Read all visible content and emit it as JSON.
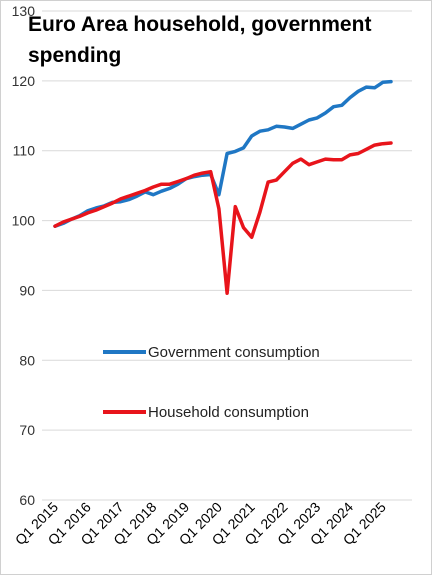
{
  "chart_data": {
    "type": "line",
    "title_lines": [
      "Euro Area household, government",
      "spending"
    ],
    "xlabel": "",
    "ylabel": "",
    "ylim": [
      60,
      130
    ],
    "y_ticks": [
      60,
      70,
      80,
      90,
      100,
      110,
      120,
      130
    ],
    "grid": "horizontal",
    "legend_placement": "center",
    "x_start": "2015-Q1",
    "x_ticks": [
      "Q1 2015",
      "Q1 2016",
      "Q1 2017",
      "Q1 2018",
      "Q1 2019",
      "Q1 2020",
      "Q1 2021",
      "Q1 2022",
      "Q1 2023",
      "Q1 2024",
      "Q1 2025"
    ],
    "x": [
      "2015-Q1",
      "2015-Q2",
      "2015-Q3",
      "2015-Q4",
      "2016-Q1",
      "2016-Q2",
      "2016-Q3",
      "2016-Q4",
      "2017-Q1",
      "2017-Q2",
      "2017-Q3",
      "2017-Q4",
      "2018-Q1",
      "2018-Q2",
      "2018-Q3",
      "2018-Q4",
      "2019-Q1",
      "2019-Q2",
      "2019-Q3",
      "2019-Q4",
      "2020-Q1",
      "2020-Q2",
      "2020-Q3",
      "2020-Q4",
      "2021-Q1",
      "2021-Q2",
      "2021-Q3",
      "2021-Q4",
      "2022-Q1",
      "2022-Q2",
      "2022-Q3",
      "2022-Q4",
      "2023-Q1",
      "2023-Q2",
      "2023-Q3",
      "2023-Q4",
      "2024-Q1",
      "2024-Q2",
      "2024-Q3",
      "2024-Q4",
      "2025-Q1",
      "2025-Q2"
    ],
    "series": [
      {
        "name": "Government consumption",
        "color": "#1f77c4",
        "values": [
          99.2,
          99.6,
          100.2,
          100.7,
          101.4,
          101.8,
          102.1,
          102.6,
          102.7,
          103.0,
          103.5,
          104.1,
          103.7,
          104.2,
          104.6,
          105.2,
          106.0,
          106.3,
          106.5,
          106.6,
          103.7,
          109.6,
          109.9,
          110.4,
          112.1,
          112.8,
          113.0,
          113.5,
          113.4,
          113.2,
          113.8,
          114.4,
          114.7,
          115.4,
          116.3,
          116.5,
          117.6,
          118.5,
          119.1,
          119.0,
          119.8,
          119.9
        ]
      },
      {
        "name": "Household consumption",
        "color": "#e8141b",
        "values": [
          99.2,
          99.8,
          100.2,
          100.6,
          101.1,
          101.5,
          102.0,
          102.5,
          103.1,
          103.5,
          103.9,
          104.3,
          104.8,
          105.2,
          105.2,
          105.6,
          106.0,
          106.5,
          106.8,
          107.0,
          101.7,
          89.6,
          102.0,
          99.0,
          97.6,
          101.2,
          105.5,
          105.8,
          107.0,
          108.2,
          108.8,
          108.0,
          108.4,
          108.8,
          108.7,
          108.7,
          109.4,
          109.6,
          110.2,
          110.8,
          111.0,
          111.1
        ]
      }
    ]
  }
}
